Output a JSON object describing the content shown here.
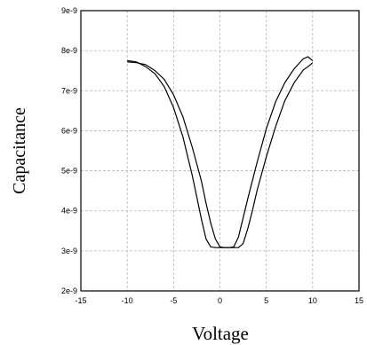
{
  "chart_data": {
    "type": "line",
    "title": "",
    "xlabel": "Voltage",
    "ylabel": "Capacitance",
    "xlim": [
      -15,
      15
    ],
    "ylim": [
      2e-09,
      9e-09
    ],
    "xticks": [
      "-15",
      "-10",
      "-5",
      "0",
      "5",
      "10",
      "15"
    ],
    "yticks": [
      "2e-9",
      "3e-9",
      "4e-9",
      "5e-9",
      "6e-9",
      "7e-9",
      "8e-9",
      "9e-9"
    ],
    "grid": true,
    "series": [
      {
        "x": [
          -10,
          -9,
          -8,
          -7,
          -6,
          -5,
          -4,
          -3,
          -2.5,
          -2,
          -1.5,
          -1,
          -0.5,
          0,
          0.5,
          1,
          1.5,
          2,
          3,
          4,
          5,
          6,
          7,
          8,
          9,
          9.5,
          10
        ],
        "y": [
          7.75e-09,
          7.72e-09,
          7.6e-09,
          7.42e-09,
          7.1e-09,
          6.58e-09,
          5.85e-09,
          4.9e-09,
          4.35e-09,
          3.8e-09,
          3.3e-09,
          3.1e-09,
          3.08e-09,
          3.08e-09,
          3.08e-09,
          3.08e-09,
          3.1e-09,
          3.35e-09,
          4.3e-09,
          5.2e-09,
          6.05e-09,
          6.72e-09,
          7.2e-09,
          7.55e-09,
          7.8e-09,
          7.85e-09,
          7.75e-09
        ]
      },
      {
        "x": [
          10,
          9.5,
          9,
          8,
          7,
          6,
          5,
          4,
          3.5,
          3,
          2.5,
          2,
          1.5,
          1,
          0.5,
          0,
          -0.5,
          -1,
          -1.5,
          -2,
          -3,
          -4,
          -5,
          -6,
          -7,
          -8,
          -9,
          -10
        ],
        "y": [
          7.7e-09,
          7.6e-09,
          7.52e-09,
          7.2e-09,
          6.75e-09,
          6.1e-09,
          5.35e-09,
          4.5e-09,
          4e-09,
          3.55e-09,
          3.18e-09,
          3.08e-09,
          3.08e-09,
          3.08e-09,
          3.08e-09,
          3.1e-09,
          3.3e-09,
          3.7e-09,
          4.2e-09,
          4.75e-09,
          5.6e-09,
          6.35e-09,
          6.9e-09,
          7.28e-09,
          7.5e-09,
          7.65e-09,
          7.7e-09,
          7.72e-09
        ]
      }
    ]
  }
}
